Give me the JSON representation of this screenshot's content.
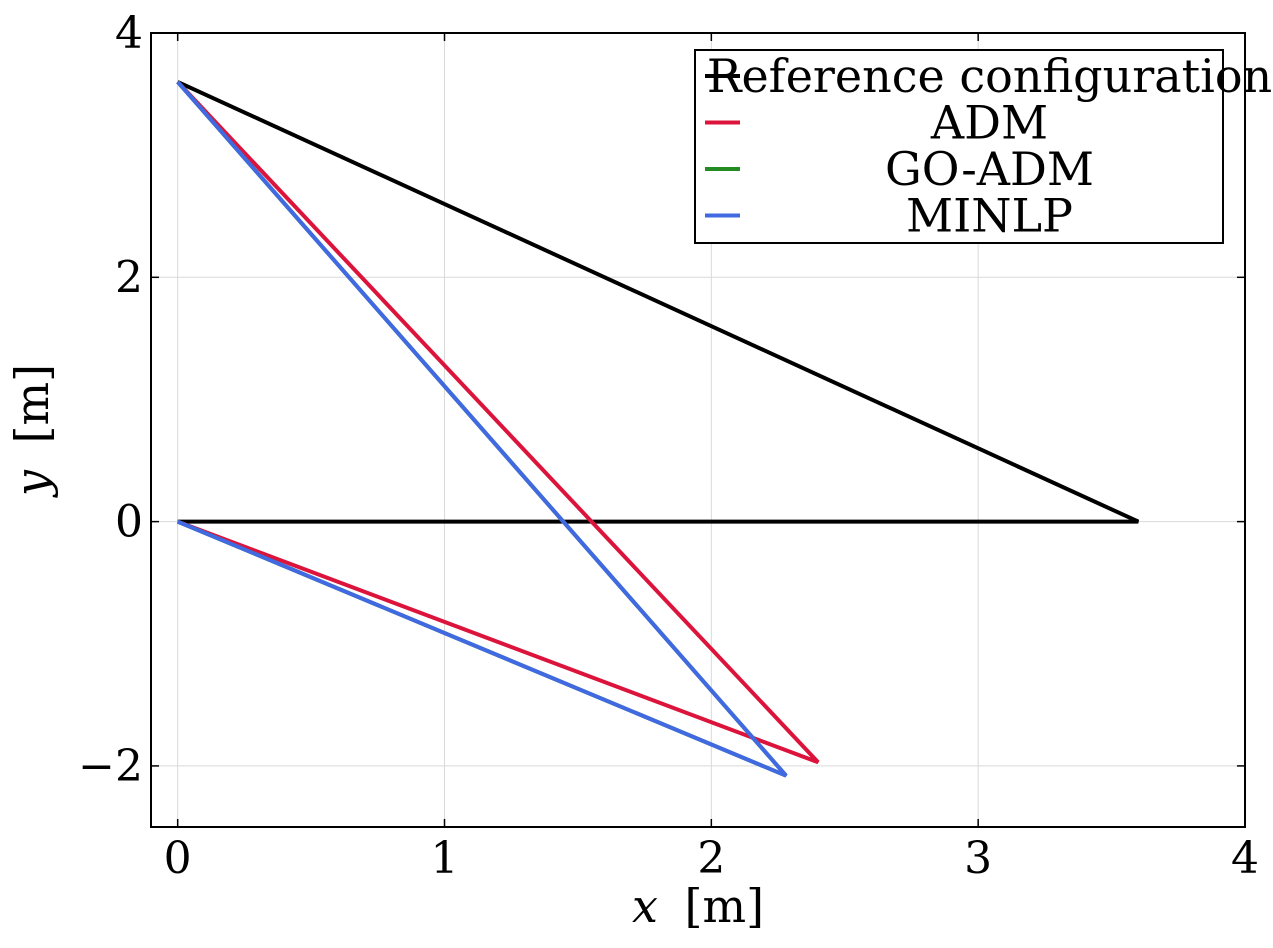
{
  "chart_data": {
    "type": "line",
    "title": "",
    "xlabel": "x",
    "xlabel_unit": "[m]",
    "ylabel": "y",
    "ylabel_unit": "[m]",
    "xlim": [
      -0.1,
      4
    ],
    "ylim": [
      -2.5,
      4
    ],
    "xticks": [
      0,
      1,
      2,
      3,
      4
    ],
    "xtick_labels": [
      "0",
      "1",
      "2",
      "3",
      "4"
    ],
    "yticks": [
      -2,
      0,
      2,
      4
    ],
    "ytick_labels": [
      "−2",
      "0",
      "2",
      "4"
    ],
    "grid": true,
    "legend_position": "top-right",
    "series": [
      {
        "name": "Reference configuration",
        "color": "#000000",
        "x": [
          0,
          3.6,
          0,
          3.6
        ],
        "y": [
          0,
          0,
          3.6,
          0
        ]
      },
      {
        "name": "ADM",
        "color": "#dc143c",
        "x": [
          0,
          2.4,
          0,
          2.4
        ],
        "y": [
          0,
          -1.97,
          3.6,
          -1.97
        ]
      },
      {
        "name": "GO-ADM",
        "color": "#228b22",
        "x": [
          0,
          2.28,
          0,
          2.28
        ],
        "y": [
          0,
          -2.08,
          3.6,
          -2.08
        ]
      },
      {
        "name": "MINLP",
        "color": "#4169e1",
        "x": [
          0,
          2.28,
          0,
          2.28
        ],
        "y": [
          0,
          -2.08,
          3.6,
          -2.08
        ]
      }
    ]
  }
}
